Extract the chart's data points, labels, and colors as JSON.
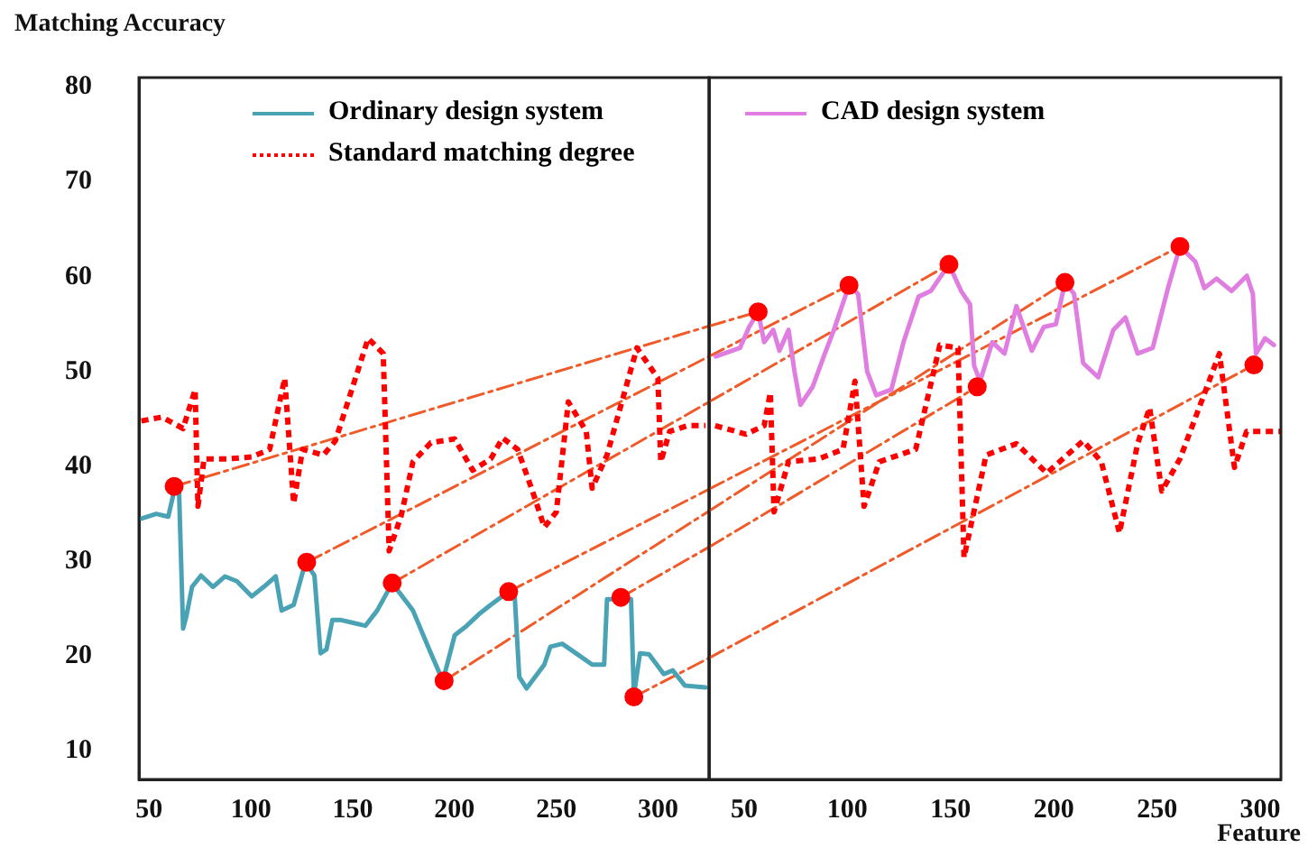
{
  "chart_data": [
    {
      "type": "line",
      "ylabel": "Matching Accuracy",
      "xlim": [
        45,
        325
      ],
      "ylim": [
        7,
        81
      ],
      "xticks": [
        50,
        100,
        150,
        200,
        250,
        300
      ],
      "yticks": [
        10,
        20,
        30,
        40,
        50,
        60,
        70,
        80
      ],
      "grid": false,
      "legend": "top",
      "marker": "none",
      "series": [
        {
          "name": "Ordinary design system",
          "color": "#4aa3b5",
          "line_style": "solid",
          "x": [
            46.2,
            53.5,
            59.4,
            62.3,
            64.7,
            66.7,
            68.2,
            71.1,
            75.5,
            81.4,
            87.2,
            93.1,
            100.4,
            106.3,
            112.2,
            115.1,
            121.0,
            126.8,
            131.2,
            134.2,
            137.1,
            140.0,
            144.4,
            150.3,
            156.2,
            162.0,
            169.4,
            179.6,
            188.4,
            194.3,
            200.1,
            206.0,
            211.9,
            217.8,
            226.6,
            229.5,
            231.8,
            235.4,
            244.1,
            247.1,
            252.9,
            261.7,
            267.6,
            273.5,
            274.9,
            277.9,
            286.7,
            288.1,
            291.1,
            295.5,
            302.8,
            307.2,
            313.1,
            323.3
          ],
          "values": [
            34.5,
            35.0,
            34.7,
            37.4,
            37.4,
            22.9,
            24.1,
            27.3,
            28.5,
            27.3,
            28.4,
            27.9,
            26.3,
            27.3,
            28.4,
            24.8,
            25.4,
            29.9,
            28.5,
            20.3,
            20.7,
            23.8,
            23.8,
            23.5,
            23.2,
            24.8,
            27.7,
            24.8,
            20.3,
            17.4,
            22.2,
            23.2,
            24.4,
            25.4,
            26.8,
            26.6,
            17.8,
            16.6,
            19.1,
            21.0,
            21.3,
            20.0,
            19.1,
            19.1,
            26.0,
            26.0,
            26.0,
            15.9,
            20.3,
            20.2,
            18.1,
            18.5,
            16.9,
            16.7
          ]
        },
        {
          "name": "Standard matching degree",
          "color": "#ff0000",
          "line_style": "dotted",
          "x": [
            46.2,
            56.4,
            66.7,
            72.6,
            74.0,
            77.0,
            88.7,
            100.4,
            109.2,
            116.6,
            121.0,
            125.4,
            135.6,
            141.5,
            157.6,
            165.0,
            167.9,
            173.8,
            179.6,
            188.4,
            200.1,
            208.9,
            217.8,
            223.6,
            231.0,
            238.3,
            244.1,
            250.0,
            255.9,
            264.7,
            267.6,
            274.9,
            289.6,
            299.9,
            301.3,
            305.7,
            314.5,
            323.3
          ],
          "values": [
            44.8,
            45.2,
            44.0,
            48.1,
            35.8,
            40.8,
            40.8,
            41.0,
            41.8,
            49.3,
            36.1,
            41.8,
            41.2,
            42.7,
            53.5,
            51.9,
            31.1,
            34.8,
            40.5,
            42.5,
            42.9,
            39.6,
            40.8,
            43.0,
            41.8,
            37.4,
            33.6,
            35.2,
            46.8,
            43.7,
            37.7,
            41.2,
            52.5,
            49.3,
            40.5,
            43.7,
            44.3,
            44.3
          ]
        },
        {
          "type": "line",
          "color": "#f05a28",
          "line_style": "dashed",
          "x": [
            62.3,
            325
          ],
          "values": [
            37.9,
            54.8
          ]
        },
        {
          "type": "line",
          "color": "#f05a28",
          "line_style": "dashed",
          "x": [
            127.4,
            325
          ],
          "values": [
            29.9,
            51.6
          ]
        },
        {
          "type": "line",
          "color": "#f05a28",
          "line_style": "dashed",
          "x": [
            169.4,
            325
          ],
          "values": [
            27.7,
            46.8
          ]
        },
        {
          "type": "line",
          "color": "#f05a28",
          "line_style": "dashed",
          "x": [
            194.9,
            325
          ],
          "values": [
            17.4,
            35.3
          ]
        },
        {
          "type": "line",
          "color": "#f05a28",
          "line_style": "dashed",
          "x": [
            226.6,
            325
          ],
          "values": [
            26.8,
            37.6
          ]
        },
        {
          "type": "line",
          "color": "#f05a28",
          "line_style": "dashed",
          "x": [
            281.7,
            325
          ],
          "values": [
            26.2,
            31.5
          ]
        },
        {
          "type": "line",
          "color": "#f05a28",
          "line_style": "dashed",
          "x": [
            288.1,
            325
          ],
          "values": [
            15.7,
            19.8
          ]
        },
        {
          "type": "scatter",
          "color": "#ff0000",
          "marker": "circle",
          "x": [
            62.3,
            127.4,
            169.4,
            194.9,
            226.6,
            281.7,
            288.1
          ],
          "values": [
            37.9,
            29.9,
            27.7,
            17.4,
            26.8,
            26.2,
            15.7
          ]
        }
      ]
    },
    {
      "type": "line",
      "xlabel": "Feature",
      "xlim": [
        33,
        310
      ],
      "ylim": [
        7,
        81
      ],
      "xticks": [
        50,
        100,
        150,
        200,
        250,
        300
      ],
      "tick_labels": "x",
      "grid": false,
      "legend": "top left",
      "marker": "none",
      "series": [
        {
          "name": "CAD design system",
          "color": "#e07de0",
          "line_style": "solid",
          "x": [
            36.3,
            48,
            52.4,
            56.8,
            59.7,
            64.1,
            67.1,
            71.5,
            74.4,
            77.3,
            83.2,
            89.1,
            93.5,
            100.8,
            105.2,
            109.6,
            114,
            121.3,
            127.2,
            134.5,
            140.4,
            149.2,
            155.1,
            159.4,
            161.4,
            164.3,
            170.2,
            176.1,
            181.9,
            189.3,
            195.1,
            201,
            205.4,
            209.8,
            214.2,
            221.5,
            228.8,
            234.7,
            240.6,
            247.9,
            255.3,
            261.1,
            268.5,
            272.9,
            278.8,
            286.1,
            293.5,
            296.4,
            297.9,
            302.3,
            306.6
          ],
          "values": [
            51.6,
            52.5,
            54.7,
            56.3,
            53.1,
            54.4,
            52.2,
            54.4,
            50.0,
            46.5,
            48.4,
            51.9,
            54.4,
            59.1,
            58.2,
            50.0,
            47.5,
            48.1,
            53.1,
            57.9,
            58.5,
            61.3,
            58.5,
            57.1,
            50.6,
            49.0,
            53.1,
            51.9,
            56.9,
            52.2,
            54.7,
            55.0,
            59.4,
            58.2,
            50.9,
            49.4,
            54.4,
            55.7,
            51.9,
            52.5,
            58.8,
            63.2,
            61.6,
            58.8,
            59.8,
            58.5,
            60.1,
            58.2,
            51.9,
            53.5,
            52.8
          ]
        },
        {
          "color": "#ff0000",
          "line_style": "dotted",
          "x": [
            36.0,
            50.9,
            59.7,
            62.7,
            64.5,
            71.5,
            86.1,
            97.9,
            103.7,
            108.1,
            115.5,
            133.1,
            144.8,
            153.6,
            156.5,
            167.2,
            181.9,
            196.6,
            214.2,
            223,
            231.8,
            240.6,
            246.4,
            252.3,
            261.1,
            280.2,
            287.5,
            293.4,
            310
          ],
          "values": [
            44.3,
            43.4,
            44.3,
            47.8,
            35.2,
            40.5,
            40.8,
            41.8,
            49.0,
            35.8,
            40.5,
            41.8,
            52.8,
            52.5,
            30.4,
            41.2,
            42.4,
            39.3,
            42.7,
            40.5,
            33.0,
            42.4,
            46.2,
            37.4,
            40.8,
            51.9,
            39.9,
            43.7,
            43.7
          ]
        },
        {
          "type": "line",
          "color": "#f05a28",
          "line_style": "dashed",
          "x": [
            33,
            56.8
          ],
          "values": [
            54.8,
            56.3
          ]
        },
        {
          "type": "line",
          "color": "#f05a28",
          "line_style": "dashed",
          "x": [
            33,
            100.8
          ],
          "values": [
            51.6,
            59.1
          ]
        },
        {
          "type": "line",
          "color": "#f05a28",
          "line_style": "dashed",
          "x": [
            33,
            149.2
          ],
          "values": [
            46.8,
            61.3
          ]
        },
        {
          "type": "line",
          "color": "#f05a28",
          "line_style": "dashed",
          "x": [
            33,
            205.4
          ],
          "values": [
            35.3,
            59.4
          ]
        },
        {
          "type": "line",
          "color": "#f05a28",
          "line_style": "dashed",
          "x": [
            33,
            261.1
          ],
          "values": [
            37.6,
            63.2
          ]
        },
        {
          "type": "line",
          "color": "#f05a28",
          "line_style": "dashed",
          "x": [
            33,
            162.9
          ],
          "values": [
            31.5,
            48.4
          ]
        },
        {
          "type": "line",
          "color": "#f05a28",
          "line_style": "dashed",
          "x": [
            33,
            296.9
          ],
          "values": [
            19.8,
            50.7
          ]
        },
        {
          "type": "scatter",
          "color": "#ff0000",
          "marker": "circle",
          "x": [
            56.8,
            100.8,
            149.2,
            205.4,
            261.1,
            162.9,
            296.9
          ],
          "values": [
            56.3,
            59.1,
            61.3,
            59.4,
            63.2,
            48.4,
            50.7
          ]
        }
      ]
    }
  ]
}
